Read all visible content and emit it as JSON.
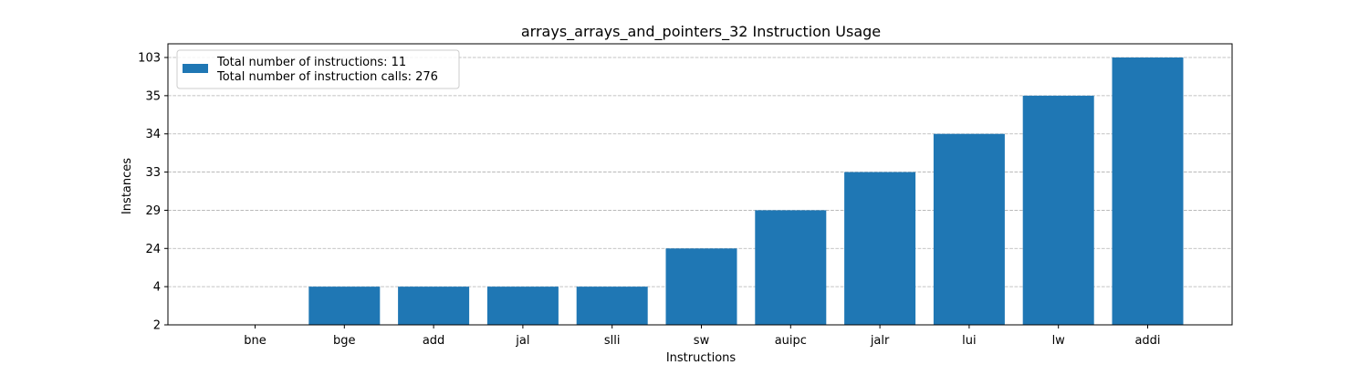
{
  "chart_data": {
    "type": "bar",
    "title": "arrays_arrays_and_pointers_32 Instruction Usage",
    "xlabel": "Instructions",
    "ylabel": "Instances",
    "categories": [
      "bne",
      "bge",
      "add",
      "jal",
      "slli",
      "sw",
      "auipc",
      "jalr",
      "lui",
      "lw",
      "addi"
    ],
    "values": [
      2,
      4,
      4,
      4,
      4,
      24,
      29,
      33,
      34,
      35,
      103
    ],
    "y_tick_labels": [
      "2",
      "4",
      "24",
      "29",
      "33",
      "34",
      "35",
      "103"
    ],
    "y_axis_scale": "categorical (evenly spaced distinct values)",
    "grid": "horizontal dashed",
    "bar_color": "#1f77b4",
    "legend": {
      "placement": "top-left",
      "lines": [
        "Total number of instructions: 11",
        "Total number of instruction calls: 276"
      ]
    }
  }
}
